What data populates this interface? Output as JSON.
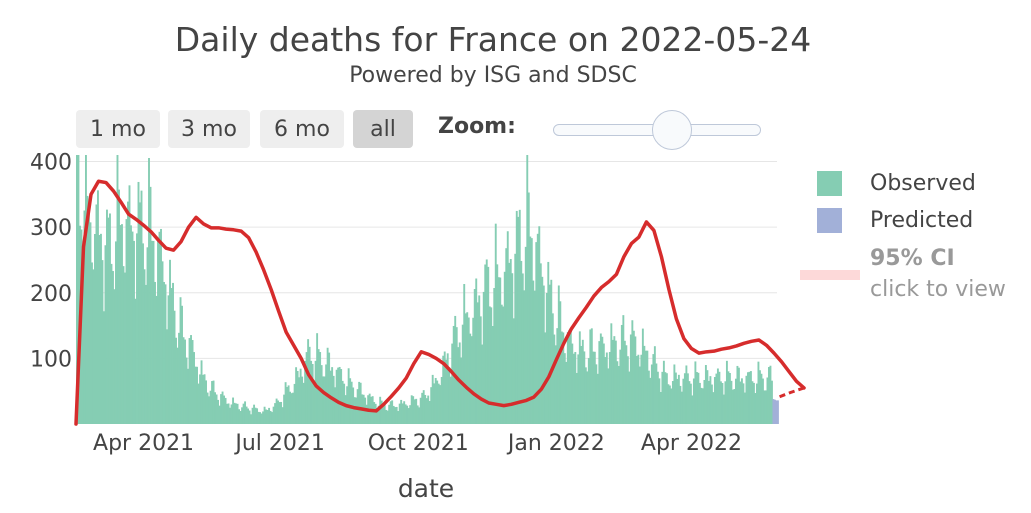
{
  "title": "Daily deaths for France on 2022-05-24",
  "subtitle": "Powered by ISG and SDSC",
  "range_buttons": [
    {
      "label": "1 mo",
      "active": false
    },
    {
      "label": "3 mo",
      "active": false
    },
    {
      "label": "6 mo",
      "active": false
    },
    {
      "label": "all",
      "active": true
    }
  ],
  "zoom_label": "Zoom:",
  "zoom_slider_value": 0.6,
  "legend": {
    "observed": "Observed",
    "predicted": "Predicted",
    "ci_title": "95% CI",
    "ci_hint": "click to view"
  },
  "colors": {
    "observed": "#85cdb3",
    "predicted": "#a2b0d8",
    "fit": "#d62c2c",
    "ci": "#fdd9d9",
    "grid": "#e6e6e6"
  },
  "chart_data": {
    "type": "bar",
    "title": "Daily deaths for France on 2022-05-24",
    "xlabel": "date",
    "ylabel": "",
    "x_range": [
      "2021-02-15",
      "2022-05-28"
    ],
    "ylim": [
      0,
      410
    ],
    "y_ticks": [
      100,
      200,
      300,
      400
    ],
    "x_ticks": [
      {
        "date": "2021-04-01",
        "label": "Apr 2021"
      },
      {
        "date": "2021-07-01",
        "label": "Jul 2021"
      },
      {
        "date": "2021-10-01",
        "label": "Oct 2021"
      },
      {
        "date": "2022-01-01",
        "label": "Jan 2022"
      },
      {
        "date": "2022-04-01",
        "label": "Apr 2022"
      }
    ],
    "observed_weekly_start": "2021-02-15",
    "observed_weekly_avg": [
      370,
      320,
      290,
      265,
      310,
      300,
      298,
      295,
      250,
      190,
      140,
      110,
      70,
      50,
      38,
      30,
      26,
      22,
      20,
      30,
      50,
      70,
      105,
      100,
      90,
      75,
      60,
      50,
      38,
      30,
      28,
      30,
      35,
      40,
      60,
      90,
      130,
      160,
      180,
      205,
      220,
      240,
      270,
      300,
      250,
      190,
      150,
      120,
      110,
      112,
      115,
      120,
      125,
      125,
      110,
      90,
      70
    ],
    "predicted": [
      {
        "date": "2022-05-25",
        "value": 38
      },
      {
        "date": "2022-05-26",
        "value": 37
      },
      {
        "date": "2022-05-27",
        "value": 36
      },
      {
        "date": "2022-05-28",
        "value": 36
      }
    ],
    "fit_start": "2021-02-15",
    "fit_line": [
      0,
      270,
      350,
      370,
      368,
      355,
      338,
      320,
      312,
      303,
      293,
      280,
      268,
      265,
      278,
      300,
      315,
      305,
      299,
      299,
      297,
      296,
      294,
      284,
      262,
      235,
      205,
      172,
      140,
      120,
      100,
      75,
      58,
      48,
      40,
      33,
      28,
      25,
      23,
      21,
      20,
      30,
      42,
      55,
      70,
      92,
      110,
      106,
      100,
      92,
      80,
      67,
      56,
      46,
      38,
      32,
      30,
      28,
      30,
      33,
      36,
      41,
      53,
      72,
      98,
      123,
      145,
      162,
      178,
      195,
      208,
      217,
      228,
      255,
      275,
      285,
      308,
      295,
      255,
      205,
      160,
      130,
      115,
      108,
      110,
      111,
      114,
      116,
      119,
      123,
      126,
      128,
      120,
      108,
      95,
      80,
      65,
      55
    ],
    "fit_extension": [
      55,
      48,
      40
    ]
  }
}
